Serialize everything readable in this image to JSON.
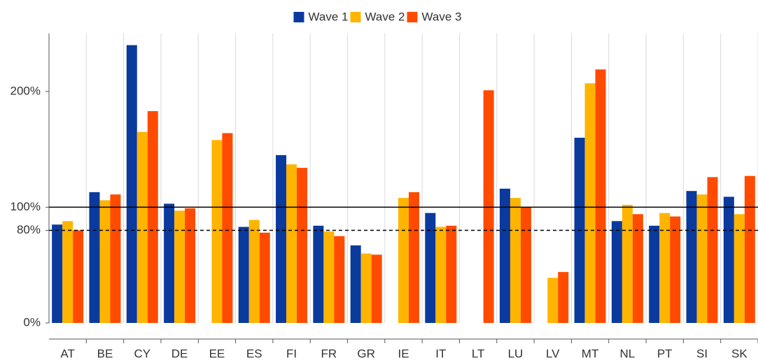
{
  "chart_data": {
    "type": "bar",
    "categories": [
      "AT",
      "BE",
      "CY",
      "DE",
      "EE",
      "ES",
      "FI",
      "FR",
      "GR",
      "IE",
      "IT",
      "LT",
      "LU",
      "LV",
      "MT",
      "NL",
      "PT",
      "SI",
      "SK"
    ],
    "series": [
      {
        "name": "Wave 1",
        "color": "#0a3a9e",
        "values": [
          85,
          113,
          240,
          103,
          null,
          83,
          145,
          84,
          67,
          null,
          95,
          null,
          116,
          null,
          160,
          88,
          84,
          114,
          109
        ]
      },
      {
        "name": "Wave 2",
        "color": "#ffb400",
        "values": [
          88,
          106,
          165,
          97,
          158,
          89,
          137,
          79,
          60,
          108,
          83,
          null,
          108,
          39,
          207,
          102,
          95,
          111,
          94
        ]
      },
      {
        "name": "Wave 3",
        "color": "#ff4b00",
        "values": [
          80,
          111,
          183,
          99,
          164,
          78,
          134,
          75,
          59,
          113,
          84,
          201,
          100,
          44,
          219,
          94,
          92,
          126,
          127
        ]
      }
    ],
    "ylim": [
      0,
      250
    ],
    "yticks": [
      {
        "value": 0,
        "label": "0%"
      },
      {
        "value": 80,
        "label": "80%"
      },
      {
        "value": 100,
        "label": "100%"
      },
      {
        "value": 200,
        "label": "200%"
      }
    ],
    "reference_lines": [
      {
        "value": 100,
        "style": "solid"
      },
      {
        "value": 80,
        "style": "dashed"
      }
    ],
    "legend": "top",
    "grid": true
  }
}
